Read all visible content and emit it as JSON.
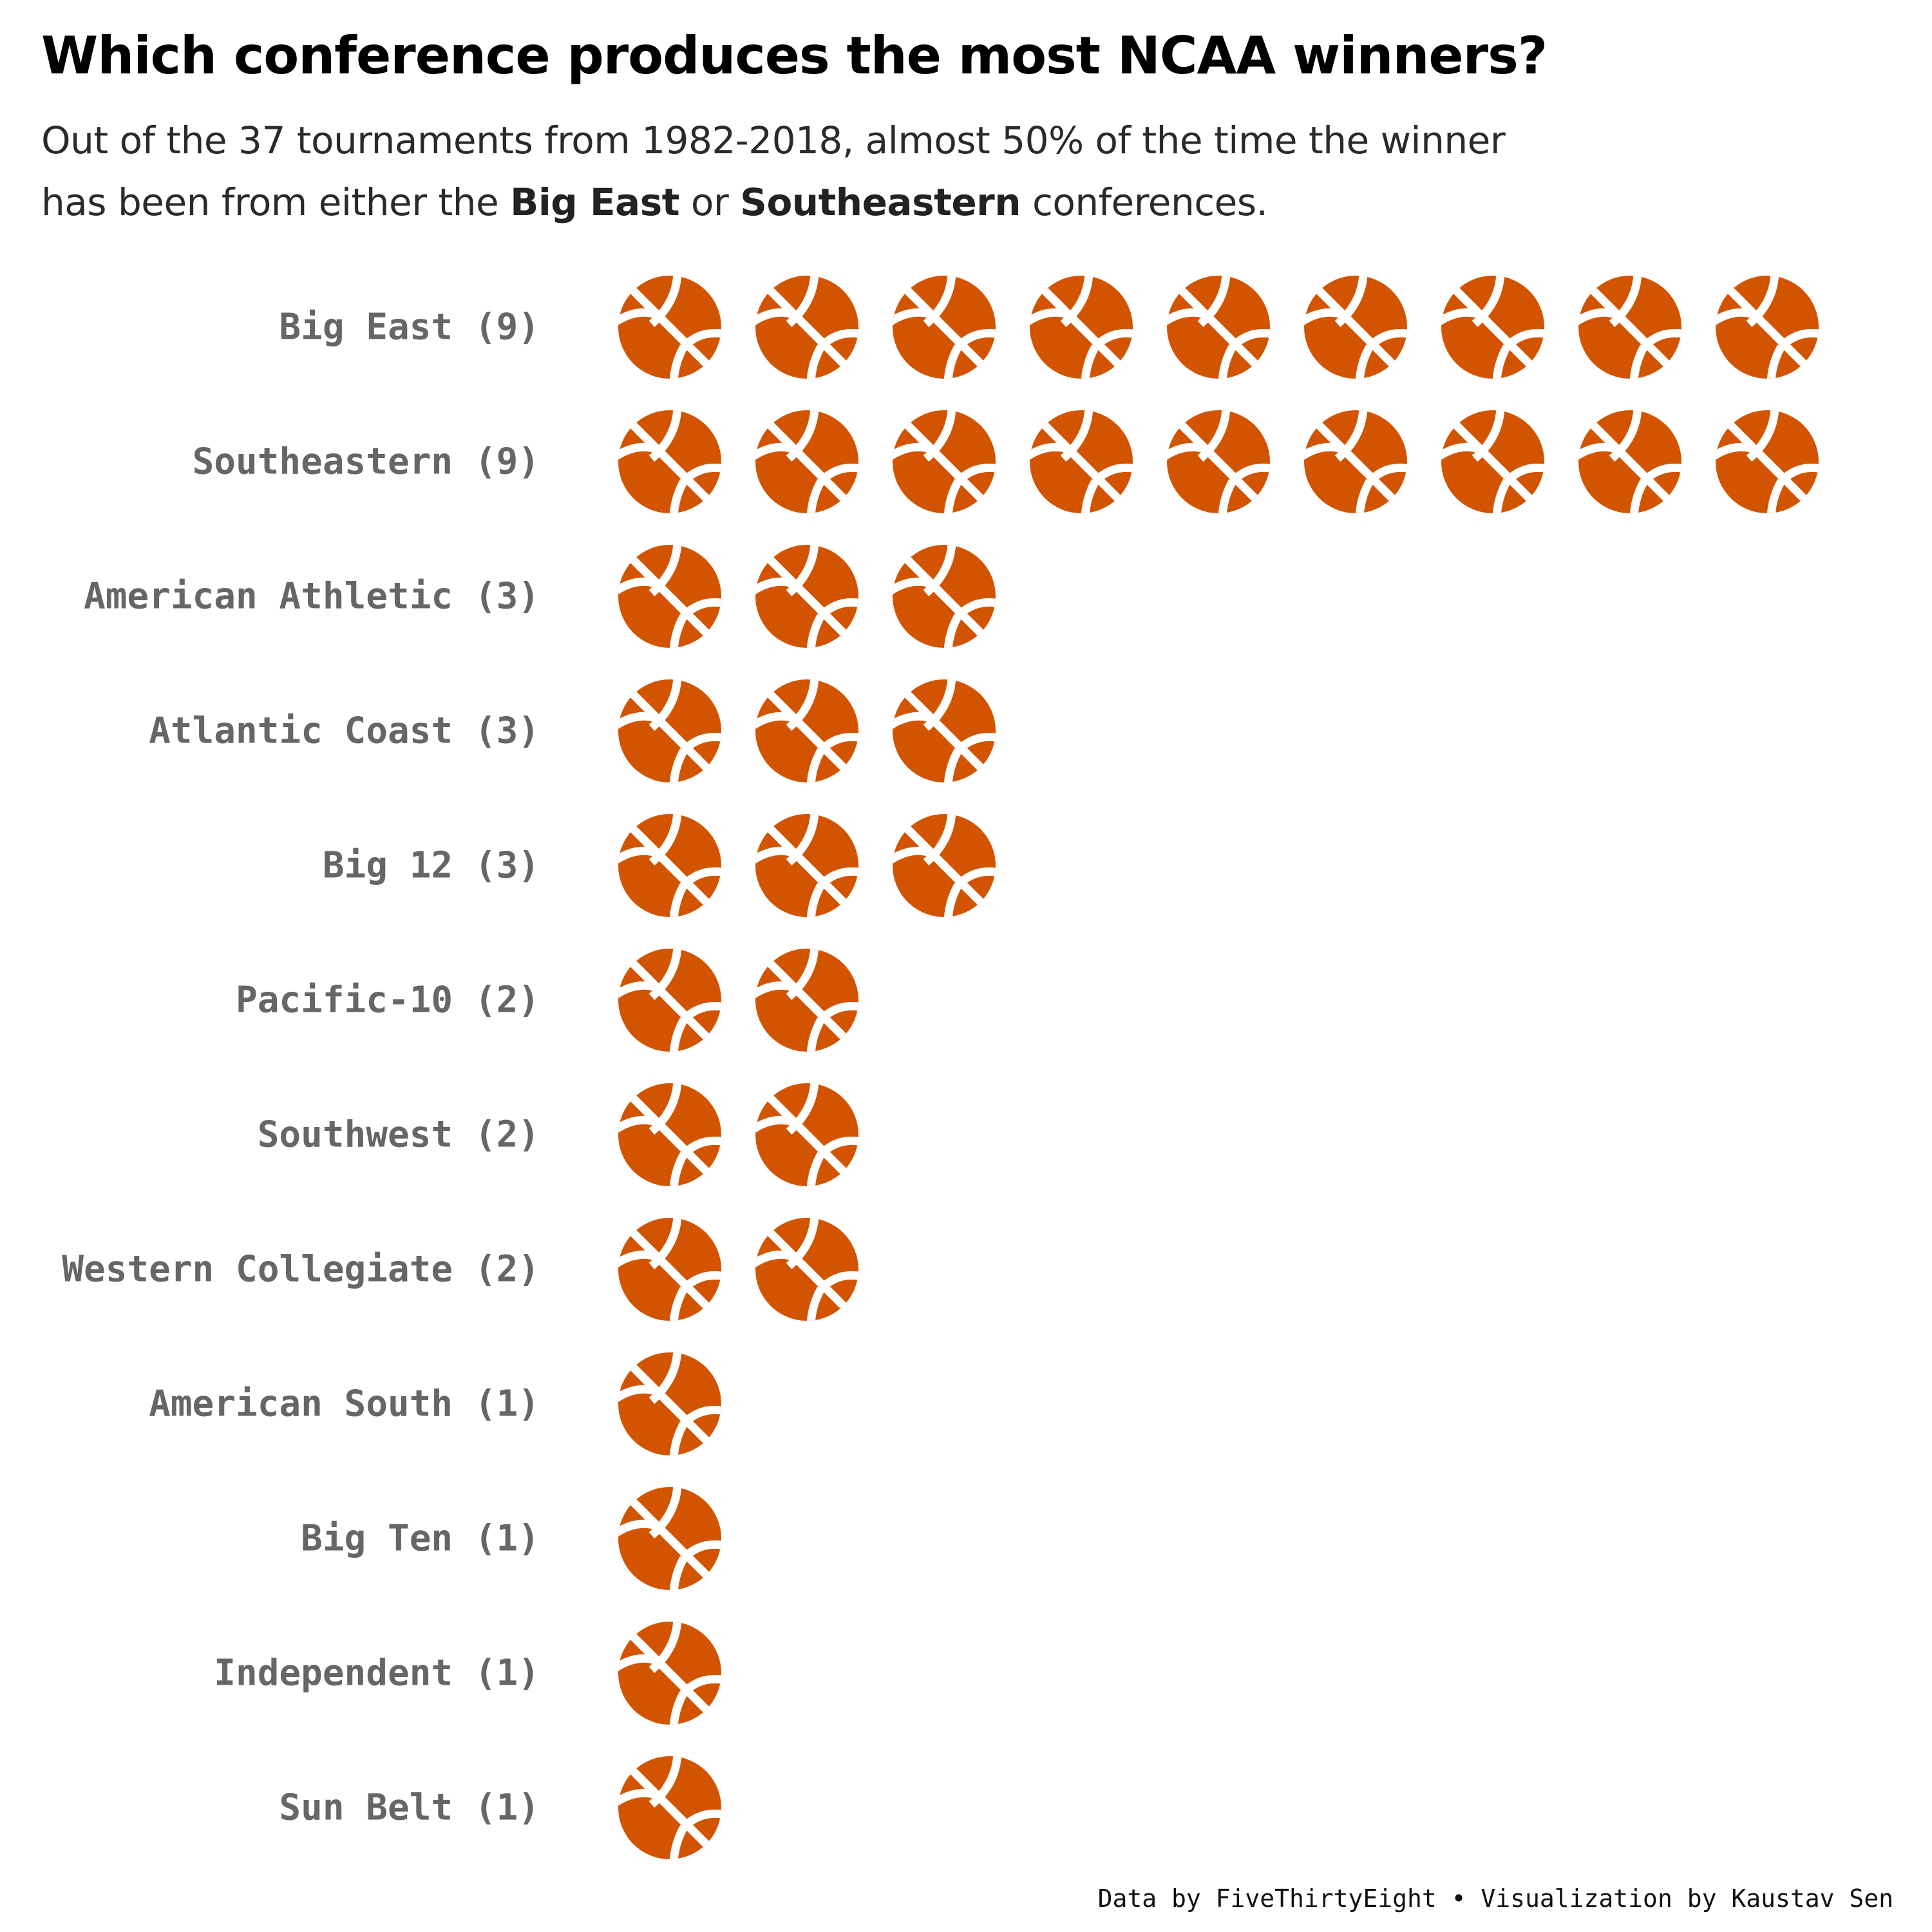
{
  "title": "Which conference produces the most NCAA winners?",
  "subtitle": {
    "line1": "Out of the 37 tournaments from 1982-2018, almost 50% of the time the winner",
    "line2_prefix": "has been from either the ",
    "highlight1": "Big East",
    "connector": " or ",
    "highlight2": "Southeastern",
    "line2_suffix": " conferences."
  },
  "caption": "Data by FiveThirtyEight • Visualization by Kaustav Sen",
  "colors": {
    "icon": "#D35400",
    "label": "#666666",
    "title": "#000000"
  },
  "icon_name": "basketball-icon",
  "chart_data": {
    "type": "pictograph",
    "categories": [
      "Big East",
      "Southeastern",
      "American Athletic",
      "Atlantic Coast",
      "Big 12",
      "Pacific-10",
      "Southwest",
      "Western Collegiate",
      "American South",
      "Big Ten",
      "Independent",
      "Sun Belt"
    ],
    "labels": [
      "Big East (9)",
      "Southeastern (9)",
      "American Athletic (3)",
      "Atlantic Coast (3)",
      "Big 12 (3)",
      "Pacific-10 (2)",
      "Southwest (2)",
      "Western Collegiate (2)",
      "American South (1)",
      "Big Ten (1)",
      "Independent (1)",
      "Sun Belt (1)"
    ],
    "values": [
      9,
      9,
      3,
      3,
      3,
      2,
      2,
      2,
      1,
      1,
      1,
      1
    ],
    "total_tournaments": 37
  }
}
